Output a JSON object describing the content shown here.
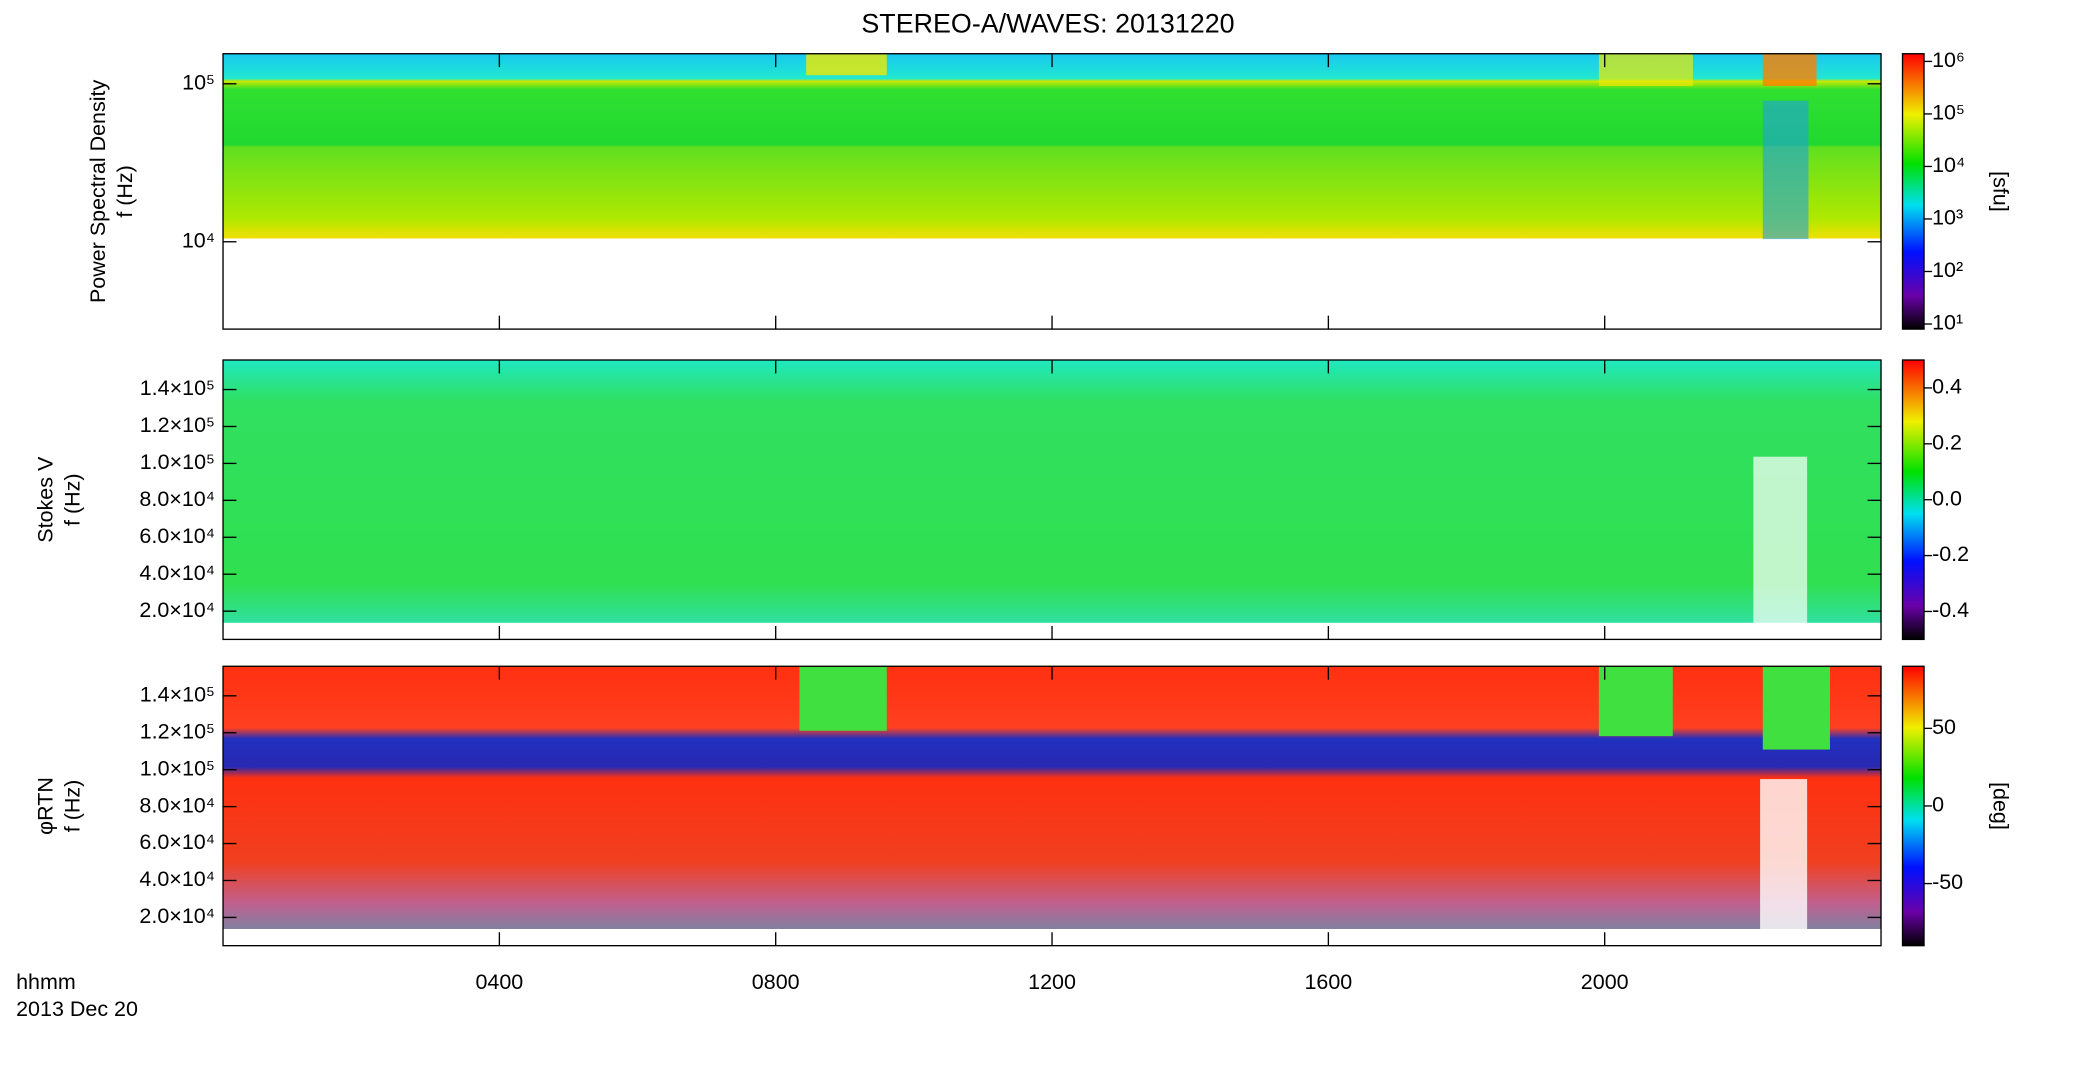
{
  "chart_data": [
    {
      "type": "heatmap",
      "title": "STEREO-A/WAVES: 20131220",
      "ylabel": [
        "Power Spectral Density",
        "f (Hz)"
      ],
      "log": true,
      "ylim": [
        2800,
        155000
      ],
      "yticks": [
        {
          "value": 10000,
          "label": "10⁴"
        },
        {
          "value": 100000,
          "label": "10⁵"
        }
      ],
      "colorbar": {
        "label": "[sfu]",
        "log": true,
        "lim": [
          8,
          1400000
        ],
        "ticks": [
          {
            "value": 10,
            "label": "10¹"
          },
          {
            "value": 100,
            "label": "10²"
          },
          {
            "value": 1000,
            "label": "10³"
          },
          {
            "value": 10000,
            "label": "10⁴"
          },
          {
            "value": 100000,
            "label": "10⁵"
          },
          {
            "value": 1000000,
            "label": "10⁶"
          }
        ]
      }
    },
    {
      "type": "heatmap",
      "ylabel": [
        "Stokes V",
        "f (Hz)"
      ],
      "log": false,
      "ylim": [
        4700,
        156000
      ],
      "yticks": [
        {
          "value": 20000,
          "label": "2.0×10⁴"
        },
        {
          "value": 40000,
          "label": "4.0×10⁴"
        },
        {
          "value": 60000,
          "label": "6.0×10⁴"
        },
        {
          "value": 80000,
          "label": "8.0×10⁴"
        },
        {
          "value": 100000,
          "label": "1.0×10⁵"
        },
        {
          "value": 120000,
          "label": "1.2×10⁵"
        },
        {
          "value": 140000,
          "label": "1.4×10⁵"
        }
      ],
      "colorbar": {
        "label": "",
        "log": false,
        "lim": [
          -0.5,
          0.5
        ],
        "ticks": [
          {
            "value": -0.4,
            "label": "-0.4"
          },
          {
            "value": -0.2,
            "label": "-0.2"
          },
          {
            "value": 0,
            "label": "0.0"
          },
          0.2,
          0.4
        ]
      }
    },
    {
      "type": "heatmap",
      "ylabel": [
        "φRTN",
        "f (Hz)"
      ],
      "log": false,
      "ylim": [
        4700,
        156000
      ],
      "yticks": [
        {
          "value": 20000,
          "label": "2.0×10⁴"
        },
        {
          "value": 40000,
          "label": "4.0×10⁴"
        },
        {
          "value": 60000,
          "label": "6.0×10⁴"
        },
        {
          "value": 80000,
          "label": "8.0×10⁴"
        },
        {
          "value": 100000,
          "label": "1.0×10⁵"
        },
        {
          "value": 120000,
          "label": "1.2×10⁵"
        },
        {
          "value": 140000,
          "label": "1.4×10⁵"
        }
      ],
      "colorbar": {
        "label": "[deg]",
        "log": false,
        "lim": [
          -90,
          90
        ],
        "ticks": [
          -50,
          0,
          50
        ]
      },
      "xlabel": "hhmm",
      "date_label": "2013 Dec 20",
      "xlim": [
        0,
        24
      ],
      "xticks": [
        {
          "value": 4,
          "label": "0400"
        },
        {
          "value": 8,
          "label": "0800"
        },
        {
          "value": 12,
          "label": "1200"
        },
        {
          "value": 16,
          "label": "1600"
        },
        {
          "value": 20,
          "label": "2000"
        }
      ]
    }
  ]
}
